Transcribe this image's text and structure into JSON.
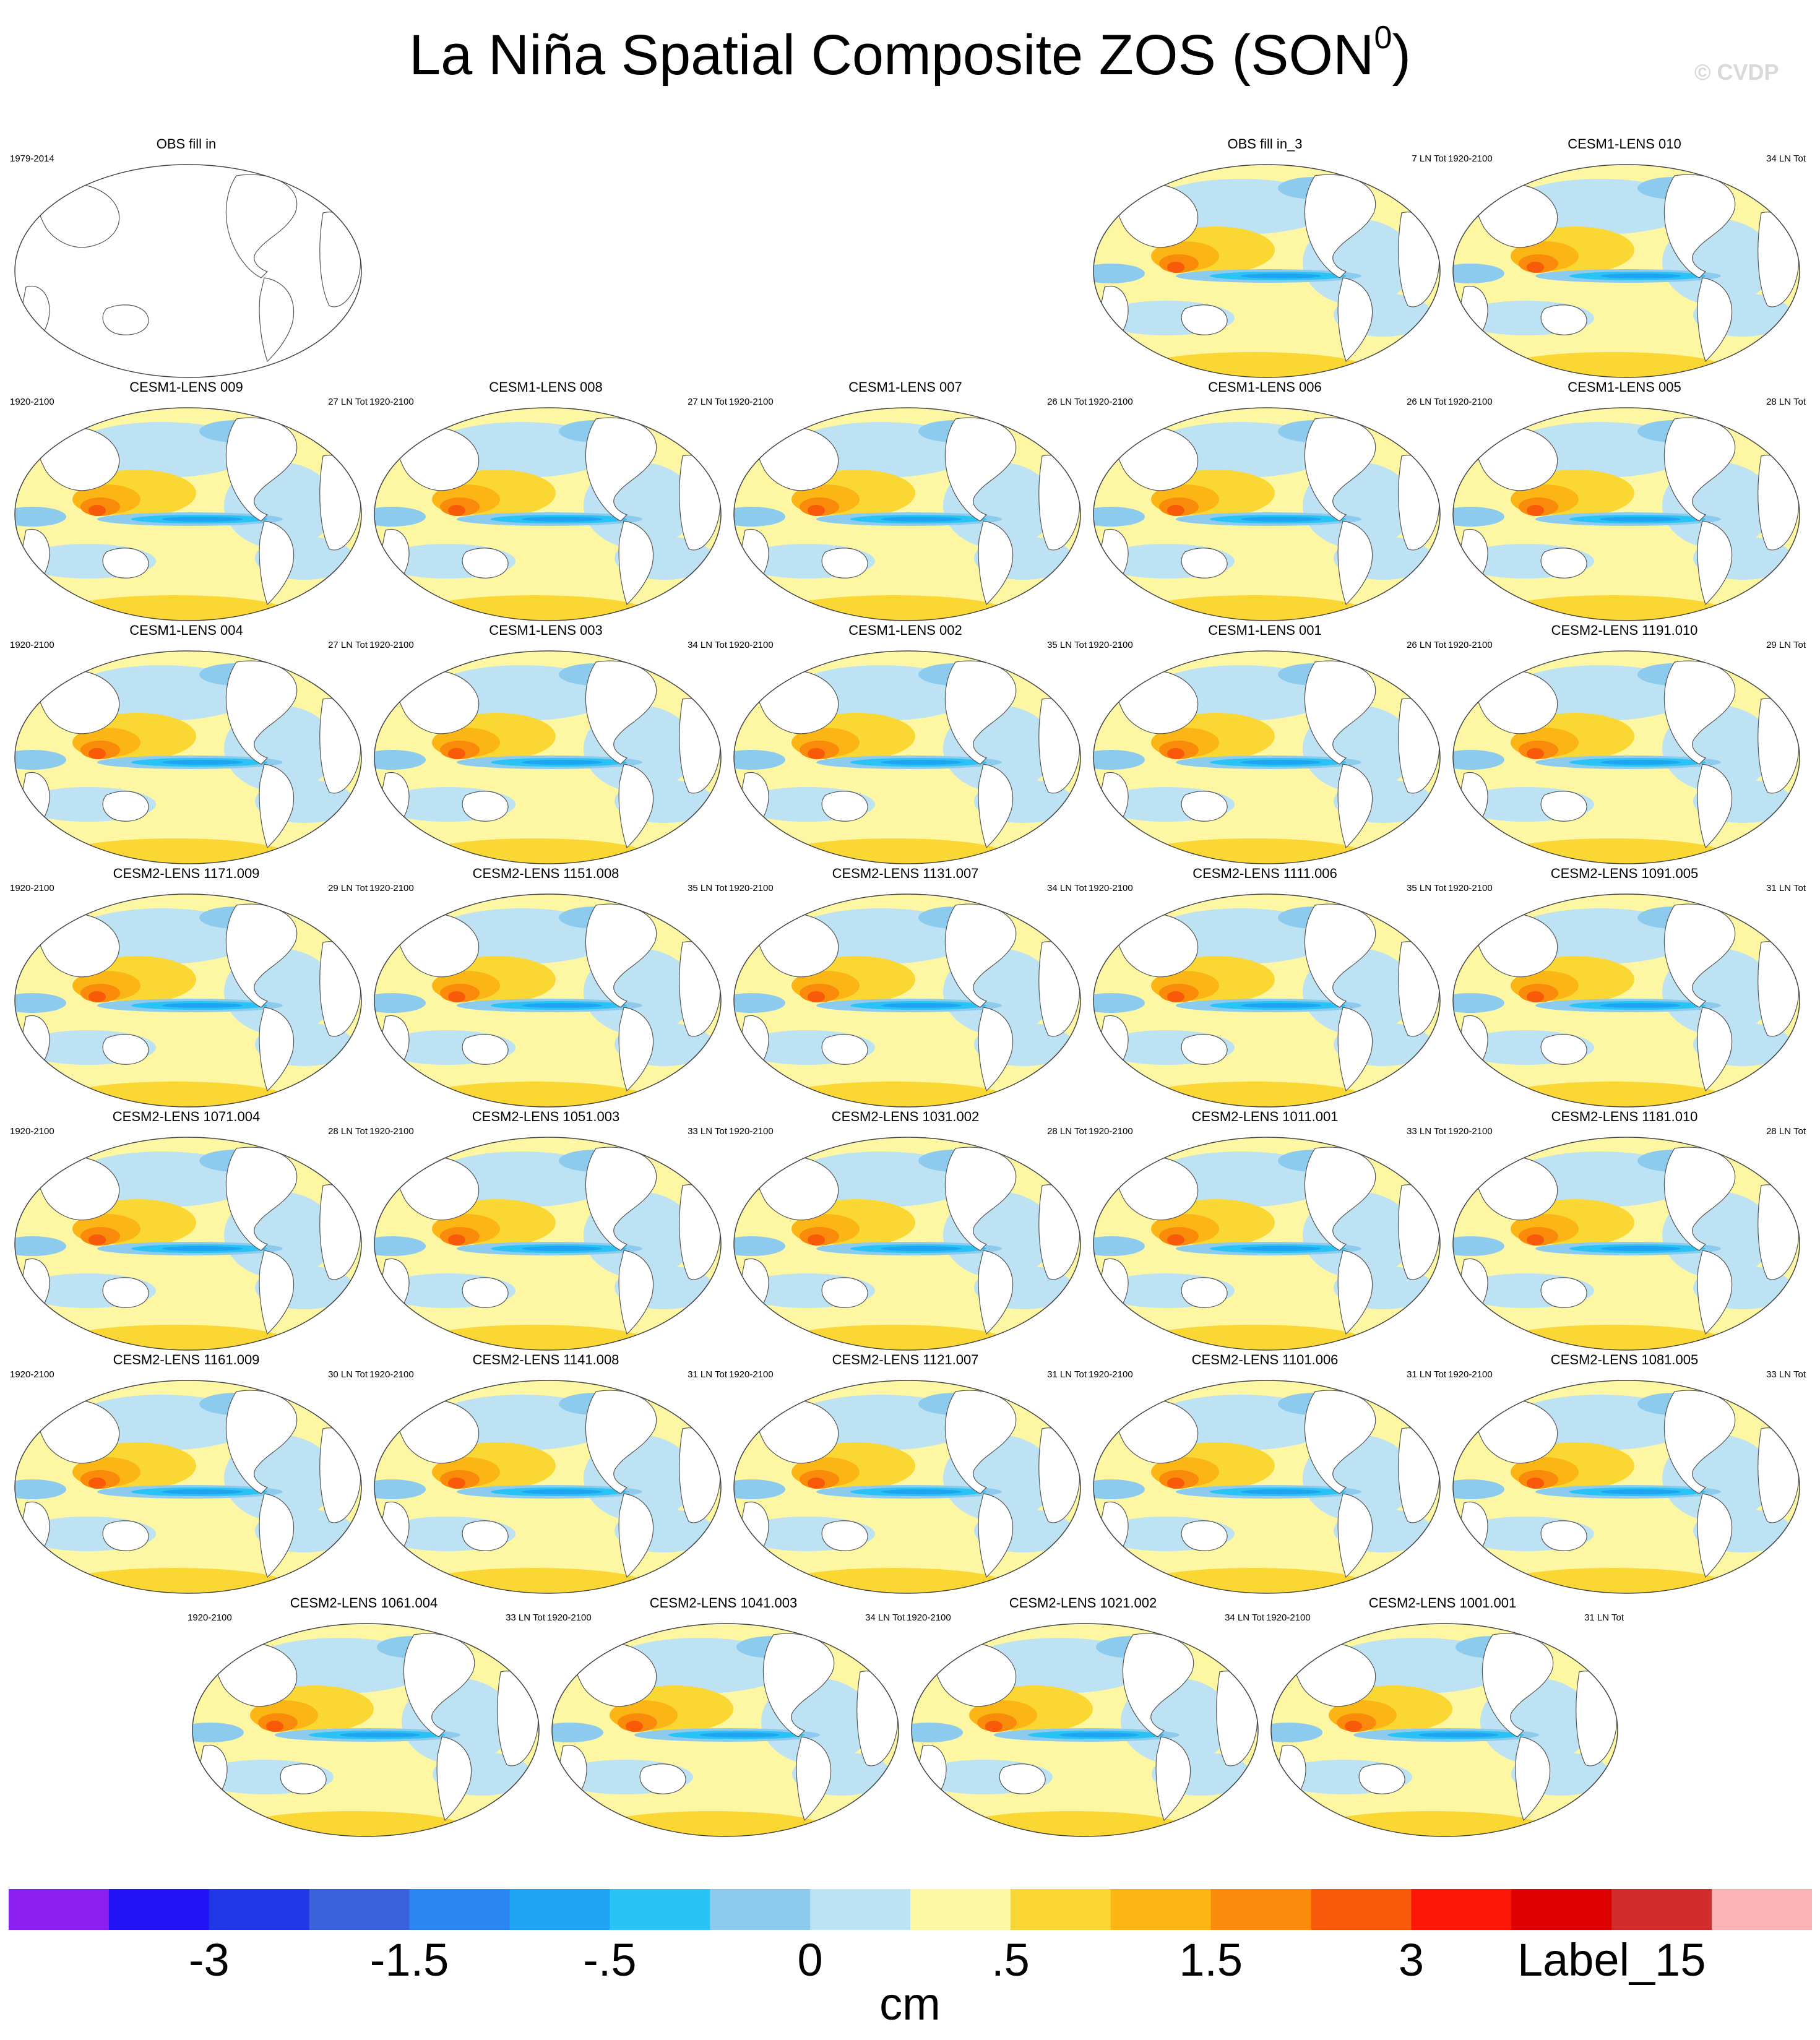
{
  "title": {
    "main": "La Niña Spatial Composite ZOS (SON",
    "sup": "0",
    "close": ")"
  },
  "watermark": "© CVDP",
  "colorbar": {
    "unit": "cm",
    "colors": [
      "#8b1ff2",
      "#2314f5",
      "#2037e6",
      "#3a62dd",
      "#2a86f0",
      "#1fa4f2",
      "#29c3f5",
      "#8ccbee",
      "#bde2f3",
      "#fdf6a3",
      "#fbd734",
      "#fbb515",
      "#fa8a0a",
      "#f95a0a",
      "#fb1606",
      "#dc0000",
      "#d22b2b",
      "#fab4b4"
    ],
    "labels": [
      {
        "text": "-3",
        "edge": 2
      },
      {
        "text": "-1.5",
        "edge": 4
      },
      {
        "text": "-.5",
        "edge": 6
      },
      {
        "text": "0",
        "edge": 8
      },
      {
        "text": ".5",
        "edge": 10
      },
      {
        "text": "1.5",
        "edge": 12
      },
      {
        "text": "3",
        "edge": 14
      },
      {
        "text": "Label_15",
        "edge": 16
      }
    ]
  },
  "panels": [
    {
      "title": "OBS fill in",
      "left": "1979-2014",
      "right": "",
      "empty": true
    },
    {
      "title": "OBS fill in_3",
      "left": "",
      "right": "7 LN Tot"
    },
    {
      "title": "CESM1-LENS 010",
      "left": "1920-2100",
      "right": "34 LN Tot"
    },
    {
      "title": "CESM1-LENS 009",
      "left": "1920-2100",
      "right": "27 LN Tot"
    },
    {
      "title": "CESM1-LENS 008",
      "left": "1920-2100",
      "right": "27 LN Tot"
    },
    {
      "title": "CESM1-LENS 007",
      "left": "1920-2100",
      "right": "26 LN Tot"
    },
    {
      "title": "CESM1-LENS 006",
      "left": "1920-2100",
      "right": "26 LN Tot"
    },
    {
      "title": "CESM1-LENS 005",
      "left": "1920-2100",
      "right": "28 LN Tot"
    },
    {
      "title": "CESM1-LENS 004",
      "left": "1920-2100",
      "right": "27 LN Tot"
    },
    {
      "title": "CESM1-LENS 003",
      "left": "1920-2100",
      "right": "34 LN Tot"
    },
    {
      "title": "CESM1-LENS 002",
      "left": "1920-2100",
      "right": "35 LN Tot"
    },
    {
      "title": "CESM1-LENS 001",
      "left": "1920-2100",
      "right": "26 LN Tot"
    },
    {
      "title": "CESM2-LENS 1191.010",
      "left": "1920-2100",
      "right": "29 LN Tot"
    },
    {
      "title": "CESM2-LENS 1171.009",
      "left": "1920-2100",
      "right": "29 LN Tot"
    },
    {
      "title": "CESM2-LENS 1151.008",
      "left": "1920-2100",
      "right": "35 LN Tot"
    },
    {
      "title": "CESM2-LENS 1131.007",
      "left": "1920-2100",
      "right": "34 LN Tot"
    },
    {
      "title": "CESM2-LENS 1111.006",
      "left": "1920-2100",
      "right": "35 LN Tot"
    },
    {
      "title": "CESM2-LENS 1091.005",
      "left": "1920-2100",
      "right": "31 LN Tot"
    },
    {
      "title": "CESM2-LENS 1071.004",
      "left": "1920-2100",
      "right": "28 LN Tot"
    },
    {
      "title": "CESM2-LENS 1051.003",
      "left": "1920-2100",
      "right": "33 LN Tot"
    },
    {
      "title": "CESM2-LENS 1031.002",
      "left": "1920-2100",
      "right": "28 LN Tot"
    },
    {
      "title": "CESM2-LENS 1011.001",
      "left": "1920-2100",
      "right": "33 LN Tot"
    },
    {
      "title": "CESM2-LENS 1181.010",
      "left": "1920-2100",
      "right": "28 LN Tot"
    },
    {
      "title": "CESM2-LENS 1161.009",
      "left": "1920-2100",
      "right": "30 LN Tot"
    },
    {
      "title": "CESM2-LENS 1141.008",
      "left": "1920-2100",
      "right": "31 LN Tot"
    },
    {
      "title": "CESM2-LENS 1121.007",
      "left": "1920-2100",
      "right": "31 LN Tot"
    },
    {
      "title": "CESM2-LENS 1101.006",
      "left": "1920-2100",
      "right": "31 LN Tot"
    },
    {
      "title": "CESM2-LENS 1081.005",
      "left": "1920-2100",
      "right": "33 LN Tot"
    },
    {
      "title": "CESM2-LENS 1061.004",
      "left": "1920-2100",
      "right": "33 LN Tot"
    },
    {
      "title": "CESM2-LENS 1041.003",
      "left": "1920-2100",
      "right": "34 LN Tot"
    },
    {
      "title": "CESM2-LENS 1021.002",
      "left": "1920-2100",
      "right": "34 LN Tot"
    },
    {
      "title": "CESM2-LENS 1001.001",
      "left": "1920-2100",
      "right": "31 LN Tot"
    }
  ]
}
